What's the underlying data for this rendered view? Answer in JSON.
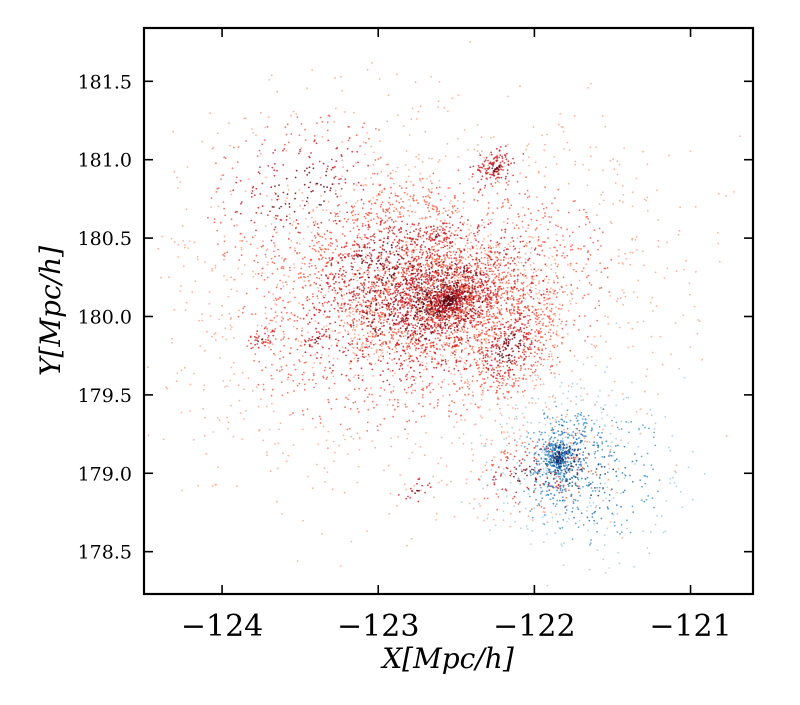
{
  "chart_data": {
    "type": "scatter",
    "title": "",
    "xlabel": "X[Mpc/h]",
    "ylabel": "Y[Mpc/h]",
    "xlim": [
      -124.5,
      -120.6
    ],
    "ylim": [
      178.23,
      181.84
    ],
    "x_ticks": [
      -124,
      -123,
      -122,
      -121
    ],
    "x_tick_labels": [
      "−124",
      "−123",
      "−122",
      "−121"
    ],
    "y_ticks": [
      178.5,
      179.0,
      179.5,
      180.0,
      180.5,
      181.0,
      181.5
    ],
    "y_tick_labels": [
      "178.5",
      "179.0",
      "179.5",
      "180.0",
      "180.5",
      "181.0",
      "181.5"
    ],
    "grid": false,
    "legend": "none",
    "series": [
      {
        "color_scale": [
          "#fca082",
          "#f6553c",
          "#cb181d",
          "#67000d"
        ],
        "clumps": [
          {
            "center": [
              -122.6,
              180.1
            ],
            "sigma": [
              0.32,
              0.2
            ],
            "count": 2200
          },
          {
            "center": [
              -122.55,
              180.1
            ],
            "sigma": [
              0.1,
              0.07
            ],
            "count": 500
          },
          {
            "center": [
              -122.15,
              179.8
            ],
            "sigma": [
              0.15,
              0.18
            ],
            "count": 500
          },
          {
            "center": [
              -123.0,
              180.35
            ],
            "sigma": [
              0.3,
              0.25
            ],
            "count": 700
          },
          {
            "center": [
              -122.7,
              180.1
            ],
            "sigma": [
              0.7,
              0.5
            ],
            "count": 2300
          },
          {
            "center": [
              -122.25,
              180.95
            ],
            "sigma": [
              0.06,
              0.05
            ],
            "count": 130
          },
          {
            "center": [
              -122.62,
              180.52
            ],
            "sigma": [
              0.04,
              0.03
            ],
            "count": 50
          },
          {
            "center": [
              -123.4,
              179.85
            ],
            "sigma": [
              0.04,
              0.04
            ],
            "count": 35
          },
          {
            "center": [
              -123.75,
              179.85
            ],
            "sigma": [
              0.04,
              0.03
            ],
            "count": 30
          },
          {
            "center": [
              -122.75,
              178.88
            ],
            "sigma": [
              0.05,
              0.04
            ],
            "count": 20
          },
          {
            "center": [
              -122.0,
              179.0
            ],
            "sigma": [
              0.25,
              0.15
            ],
            "count": 250
          },
          {
            "center": [
              -123.5,
              180.8
            ],
            "sigma": [
              0.4,
              0.3
            ],
            "count": 400
          }
        ]
      },
      {
        "color_scale": [
          "#9ecae1",
          "#4292c6",
          "#2171b5",
          "#08306b"
        ],
        "clumps": [
          {
            "center": [
              -121.85,
              179.1
            ],
            "sigma": [
              0.05,
              0.07
            ],
            "count": 300
          },
          {
            "center": [
              -121.8,
              179.1
            ],
            "sigma": [
              0.17,
              0.2
            ],
            "count": 450
          },
          {
            "center": [
              -121.65,
              179.0
            ],
            "sigma": [
              0.3,
              0.28
            ],
            "count": 300
          }
        ]
      }
    ]
  }
}
